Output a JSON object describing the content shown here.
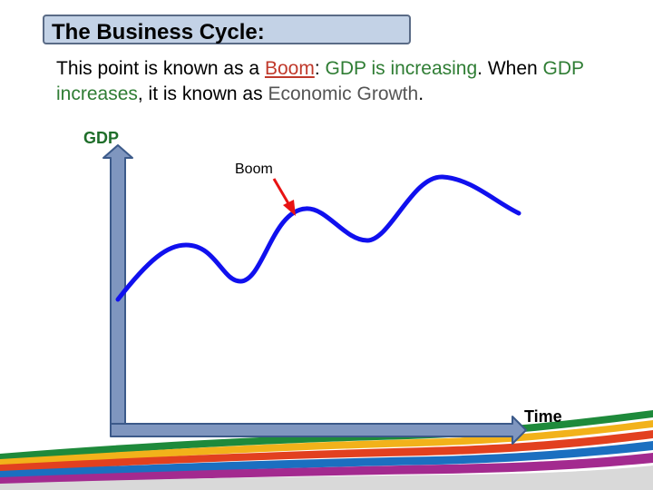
{
  "title": "The Business Cycle:",
  "body": {
    "part1": "This point is known as a ",
    "boom_word": "Boom",
    "part2": ": ",
    "gdp1": "GDP is increasing",
    "part3": ". When ",
    "gdp2": "GDP increases",
    "part4": ", it is known as ",
    "growth": "Economic Growth",
    "part5": "."
  },
  "diagram": {
    "y_axis_label": "GDP",
    "x_axis_label": "Time",
    "annotation": "Boom"
  },
  "colors": {
    "curve": "#1010ee",
    "axis_fill": "#7f96bf",
    "axis_stroke": "#3c5a8a",
    "arrow": "#e81313",
    "title_bg": "#c3d2e6"
  }
}
